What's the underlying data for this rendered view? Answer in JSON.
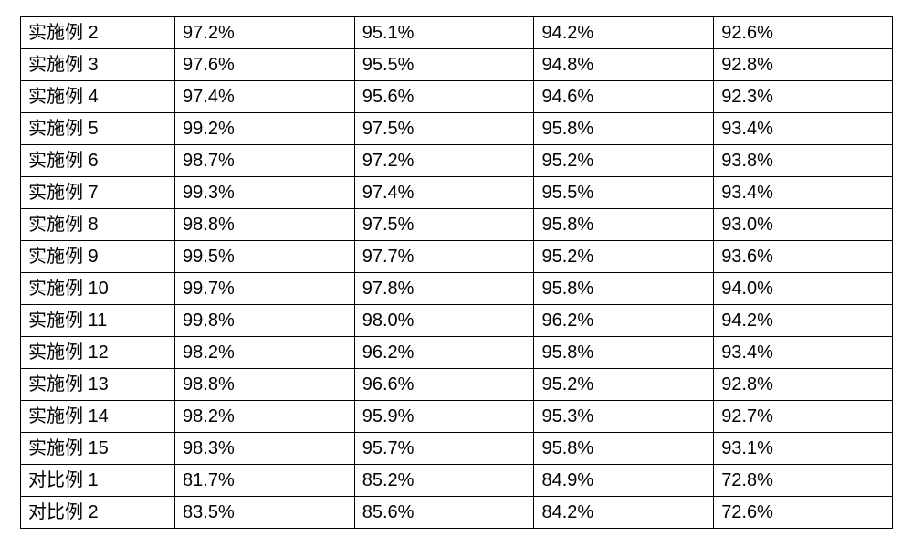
{
  "table": {
    "type": "table",
    "border_color": "#000000",
    "background_color": "#ffffff",
    "text_color": "#000000",
    "font_size_pt": 15,
    "col_widths_pct": [
      17.7,
      20.6,
      20.6,
      20.6,
      20.5
    ],
    "columns": [
      "label",
      "v1",
      "v2",
      "v3",
      "v4"
    ],
    "rows": [
      {
        "label": "实施例 2",
        "v1": "97.2%",
        "v2": "95.1%",
        "v3": "94.2%",
        "v4": "92.6%"
      },
      {
        "label": "实施例 3",
        "v1": "97.6%",
        "v2": "95.5%",
        "v3": "94.8%",
        "v4": "92.8%"
      },
      {
        "label": "实施例 4",
        "v1": "97.4%",
        "v2": "95.6%",
        "v3": "94.6%",
        "v4": "92.3%"
      },
      {
        "label": "实施例 5",
        "v1": "99.2%",
        "v2": "97.5%",
        "v3": "95.8%",
        "v4": "93.4%"
      },
      {
        "label": "实施例 6",
        "v1": "98.7%",
        "v2": "97.2%",
        "v3": "95.2%",
        "v4": "93.8%"
      },
      {
        "label": "实施例 7",
        "v1": "99.3%",
        "v2": "97.4%",
        "v3": "95.5%",
        "v4": "93.4%"
      },
      {
        "label": "实施例 8",
        "v1": "98.8%",
        "v2": "97.5%",
        "v3": "95.8%",
        "v4": "93.0%"
      },
      {
        "label": "实施例 9",
        "v1": "99.5%",
        "v2": "97.7%",
        "v3": "95.2%",
        "v4": "93.6%"
      },
      {
        "label": "实施例 10",
        "v1": "99.7%",
        "v2": "97.8%",
        "v3": "95.8%",
        "v4": "94.0%"
      },
      {
        "label": "实施例 11",
        "v1": "99.8%",
        "v2": "98.0%",
        "v3": "96.2%",
        "v4": "94.2%"
      },
      {
        "label": "实施例 12",
        "v1": "98.2%",
        "v2": "96.2%",
        "v3": "95.8%",
        "v4": "93.4%"
      },
      {
        "label": "实施例 13",
        "v1": "98.8%",
        "v2": "96.6%",
        "v3": "95.2%",
        "v4": "92.8%"
      },
      {
        "label": "实施例 14",
        "v1": "98.2%",
        "v2": "95.9%",
        "v3": "95.3%",
        "v4": "92.7%"
      },
      {
        "label": "实施例 15",
        "v1": "98.3%",
        "v2": "95.7%",
        "v3": "95.8%",
        "v4": "93.1%"
      },
      {
        "label": "对比例 1",
        "v1": "81.7%",
        "v2": "85.2%",
        "v3": "84.9%",
        "v4": "72.8%"
      },
      {
        "label": "对比例 2",
        "v1": "83.5%",
        "v2": "85.6%",
        "v3": "84.2%",
        "v4": "72.6%"
      }
    ]
  }
}
